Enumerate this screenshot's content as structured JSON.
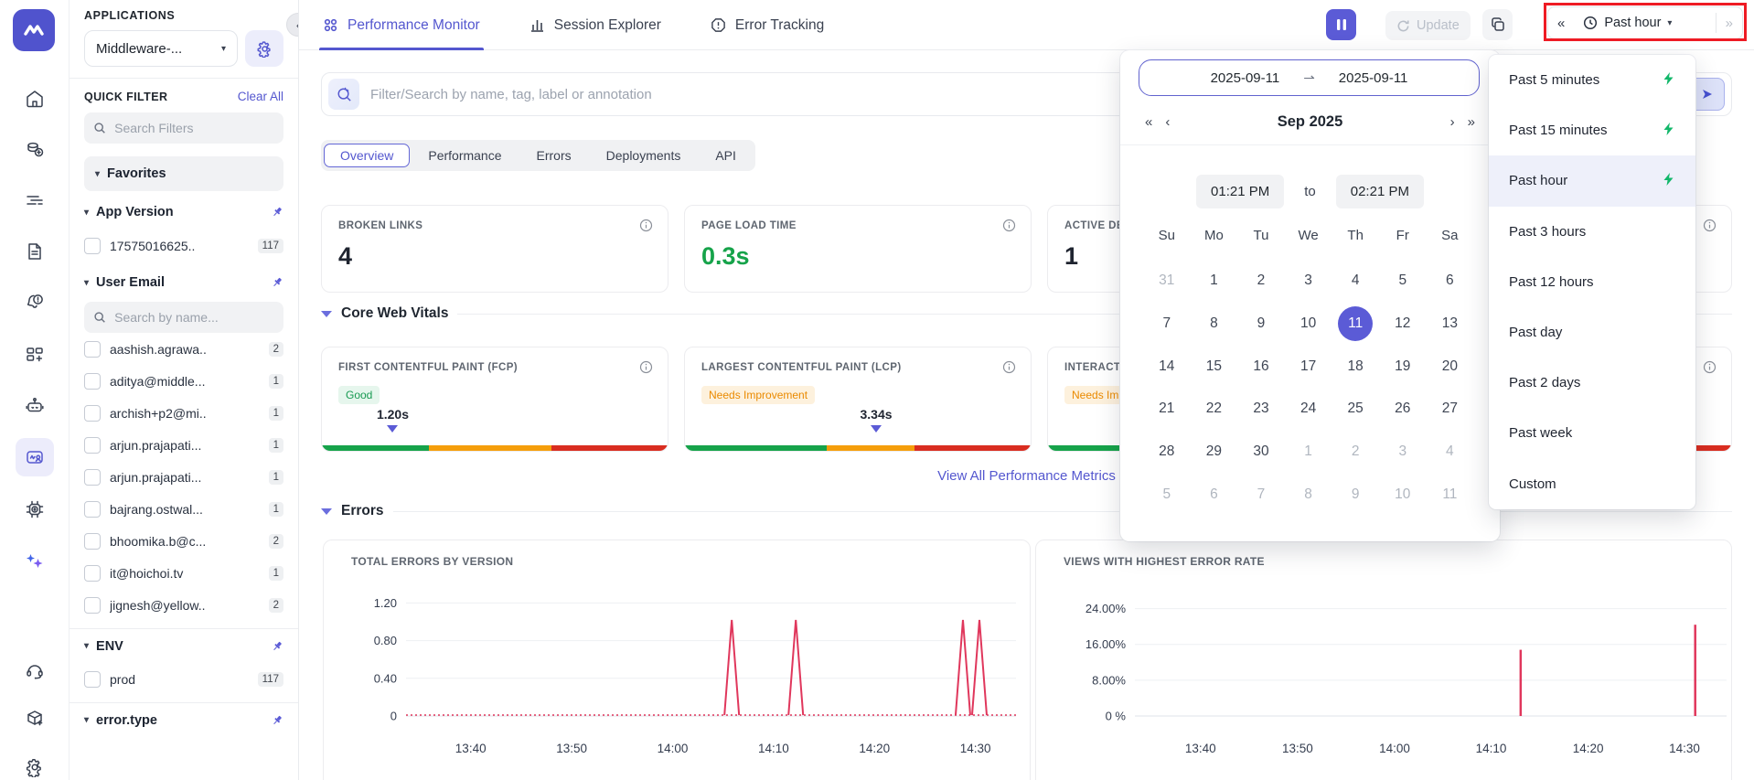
{
  "colors": {
    "accent": "#5457cf",
    "accent_dark": "#5b5bd6",
    "annotation_red": "#ee1b24",
    "chart_red": "#e0375c",
    "good_green": "#189a52",
    "warn_orange": "#ea8a00",
    "bar_green": "#16a34a",
    "bar_orange": "#f59e0b",
    "bar_red": "#d92d20",
    "bolt_green": "#12b76a"
  },
  "rail_icons": [
    "home-icon",
    "cost-icon",
    "logs-icon",
    "docs-icon",
    "alerts-icon",
    "dashboards-icon",
    "bot-icon",
    "rum-icon",
    "infra-icon",
    "workflow-icon",
    "support-icon",
    "install-icon",
    "settings-icon"
  ],
  "left_panel": {
    "title": "APPLICATIONS",
    "app_selector": "Middleware-...",
    "quick_filter_title": "QUICK FILTER",
    "clear_all": "Clear All",
    "search_placeholder": "Search Filters",
    "favorites_label": "Favorites",
    "sections": [
      {
        "label": "App Version",
        "pinned": true,
        "items": [
          {
            "label": "17575016625..",
            "count": "117"
          }
        ]
      },
      {
        "label": "User Email",
        "pinned": true,
        "search_placeholder": "Search by name...",
        "items": [
          {
            "label": "aashish.agrawa..",
            "count": "2"
          },
          {
            "label": "aditya@middle...",
            "count": "1"
          },
          {
            "label": "archish+p2@mi..",
            "count": "1"
          },
          {
            "label": "arjun.prajapati...",
            "count": "1"
          },
          {
            "label": "arjun.prajapati...",
            "count": "1"
          },
          {
            "label": "bajrang.ostwal...",
            "count": "1"
          },
          {
            "label": "bhoomika.b@c...",
            "count": "2"
          },
          {
            "label": "it@hoichoi.tv",
            "count": "1"
          },
          {
            "label": "jignesh@yellow..",
            "count": "2"
          }
        ]
      },
      {
        "label": "ENV",
        "pinned": true,
        "items": [
          {
            "label": "prod",
            "count": "117"
          }
        ]
      },
      {
        "label": "error.type",
        "pinned": true,
        "items": []
      }
    ]
  },
  "header": {
    "tabs": [
      {
        "label": "Performance Monitor",
        "active": true
      },
      {
        "label": "Session Explorer",
        "active": false
      },
      {
        "label": "Error Tracking",
        "active": false
      }
    ],
    "update_label": "Update",
    "time_selector_label": "Past hour"
  },
  "toolbar": {
    "search_placeholder": "Filter/Search by name, tag, label or annotation",
    "subtabs": [
      {
        "label": "Overview",
        "active": true
      },
      {
        "label": "Performance",
        "active": false
      },
      {
        "label": "Errors",
        "active": false
      },
      {
        "label": "Deployments",
        "active": false
      },
      {
        "label": "API",
        "active": false
      }
    ]
  },
  "metrics": [
    {
      "title": "BROKEN LINKS",
      "value": "4",
      "value_color": "#1f2430"
    },
    {
      "title": "PAGE LOAD TIME",
      "value": "0.3s",
      "value_color": "#16a34a"
    },
    {
      "title": "ACTIVE DEPL",
      "value": "1",
      "value_color": "#1f2430"
    },
    {
      "title": "",
      "value": "",
      "value_color": "#1f2430"
    }
  ],
  "core_web_vitals": {
    "section_title": "Core Web Vitals",
    "view_all_label": "View All Performance Metrics",
    "cards": [
      {
        "title": "FIRST CONTENTFUL PAINT (FCP)",
        "badge": "Good",
        "badge_type": "good",
        "value": "1.20s",
        "marker_pos": 0.205,
        "green_end": 0.31,
        "orange_end": 0.665
      },
      {
        "title": "LARGEST CONTENTFUL PAINT (LCP)",
        "badge": "Needs Improvement",
        "badge_type": "warn",
        "value": "3.34s",
        "marker_pos": 0.553,
        "green_end": 0.41,
        "orange_end": 0.665
      },
      {
        "title": "INTERACTIO",
        "badge": "Needs Impro",
        "badge_type": "warn",
        "value": "",
        "marker_pos": null,
        "green_end": 0.41,
        "orange_end": 0.665
      },
      {
        "title": "",
        "badge": "",
        "badge_type": "",
        "value": "",
        "marker_pos": null,
        "green_end": 0.31,
        "orange_end": 0.66
      }
    ]
  },
  "errors_section_title": "Errors",
  "chart_data": [
    {
      "type": "line",
      "title": "TOTAL ERRORS BY VERSION",
      "series_color": "#e0375c",
      "ylim": [
        0,
        1.33
      ],
      "yticks": [
        {
          "label": "0",
          "value": 0
        },
        {
          "label": "0.40",
          "value": 0.4
        },
        {
          "label": "0.80",
          "value": 0.8
        },
        {
          "label": "1.20",
          "value": 1.2
        }
      ],
      "xticks": [
        {
          "label": "13:40",
          "pos": 0.106
        },
        {
          "label": "13:50",
          "pos": 0.2715
        },
        {
          "label": "14:00",
          "pos": 0.437
        },
        {
          "label": "14:10",
          "pos": 0.6025
        },
        {
          "label": "14:20",
          "pos": 0.768
        },
        {
          "label": "14:30",
          "pos": 0.9335
        }
      ],
      "baseline_value": 0,
      "marks": [
        {
          "time": "14:07",
          "value": 1.02,
          "pos": 0.534
        },
        {
          "time": "14:13",
          "value": 1.02,
          "pos": 0.639
        },
        {
          "time": "14:28",
          "value": 1.02,
          "pos": 0.913
        },
        {
          "time": "14:31",
          "value": 1.02,
          "pos": 0.94
        }
      ],
      "grid": true,
      "legend": "none"
    },
    {
      "type": "bar",
      "title": "VIEWS WITH HIGHEST ERROR RATE",
      "series_color": "#e0375c",
      "ylim": [
        0,
        28
      ],
      "yticks": [
        {
          "label": "0 %",
          "value": 0
        },
        {
          "label": "8.00%",
          "value": 8
        },
        {
          "label": "16.00%",
          "value": 16
        },
        {
          "label": "24.00%",
          "value": 24
        }
      ],
      "xticks": [
        {
          "label": "13:40",
          "pos": 0.111
        },
        {
          "label": "13:50",
          "pos": 0.275
        },
        {
          "label": "14:00",
          "pos": 0.439
        },
        {
          "label": "14:10",
          "pos": 0.602
        },
        {
          "label": "14:20",
          "pos": 0.766
        },
        {
          "label": "14:30",
          "pos": 0.929
        }
      ],
      "marks": [
        {
          "time": "14:13",
          "value": 14.8,
          "pos": 0.652
        },
        {
          "time": "14:31",
          "value": 20.4,
          "pos": 0.947
        }
      ],
      "grid": true,
      "legend": "none"
    }
  ],
  "calendar": {
    "range_start": "2025-09-11",
    "range_arrow": "⇀",
    "range_end": "2025-09-11",
    "month_label": "Sep 2025",
    "time_from": "01:21 PM",
    "to_label": "to",
    "time_to": "02:21 PM",
    "weekdays": [
      "Su",
      "Mo",
      "Tu",
      "We",
      "Th",
      "Fr",
      "Sa"
    ],
    "rows": [
      [
        {
          "d": "31",
          "m": 1
        },
        {
          "d": "1"
        },
        {
          "d": "2"
        },
        {
          "d": "3"
        },
        {
          "d": "4"
        },
        {
          "d": "5"
        },
        {
          "d": "6"
        }
      ],
      [
        {
          "d": "7"
        },
        {
          "d": "8"
        },
        {
          "d": "9"
        },
        {
          "d": "10"
        },
        {
          "d": "11",
          "s": 1
        },
        {
          "d": "12"
        },
        {
          "d": "13"
        }
      ],
      [
        {
          "d": "14"
        },
        {
          "d": "15"
        },
        {
          "d": "16"
        },
        {
          "d": "17"
        },
        {
          "d": "18"
        },
        {
          "d": "19"
        },
        {
          "d": "20"
        }
      ],
      [
        {
          "d": "21"
        },
        {
          "d": "22"
        },
        {
          "d": "23"
        },
        {
          "d": "24"
        },
        {
          "d": "25"
        },
        {
          "d": "26"
        },
        {
          "d": "27"
        }
      ],
      [
        {
          "d": "28"
        },
        {
          "d": "29"
        },
        {
          "d": "30"
        },
        {
          "d": "1",
          "m": 1
        },
        {
          "d": "2",
          "m": 1
        },
        {
          "d": "3",
          "m": 1
        },
        {
          "d": "4",
          "m": 1
        }
      ],
      [
        {
          "d": "5",
          "m": 1
        },
        {
          "d": "6",
          "m": 1
        },
        {
          "d": "7",
          "m": 1
        },
        {
          "d": "8",
          "m": 1
        },
        {
          "d": "9",
          "m": 1
        },
        {
          "d": "10",
          "m": 1
        },
        {
          "d": "11",
          "m": 1
        }
      ]
    ],
    "selected_date": "11"
  },
  "time_menu": {
    "items": [
      {
        "label": "Past 5 minutes",
        "bolt": true,
        "active": false
      },
      {
        "label": "Past 15 minutes",
        "bolt": true,
        "active": false
      },
      {
        "label": "Past hour",
        "bolt": true,
        "active": true
      },
      {
        "label": "Past 3 hours",
        "bolt": false,
        "active": false
      },
      {
        "label": "Past 12 hours",
        "bolt": false,
        "active": false
      },
      {
        "label": "Past day",
        "bolt": false,
        "active": false
      },
      {
        "label": "Past 2 days",
        "bolt": false,
        "active": false
      },
      {
        "label": "Past week",
        "bolt": false,
        "active": false
      },
      {
        "label": "Custom",
        "bolt": false,
        "active": false
      }
    ]
  }
}
